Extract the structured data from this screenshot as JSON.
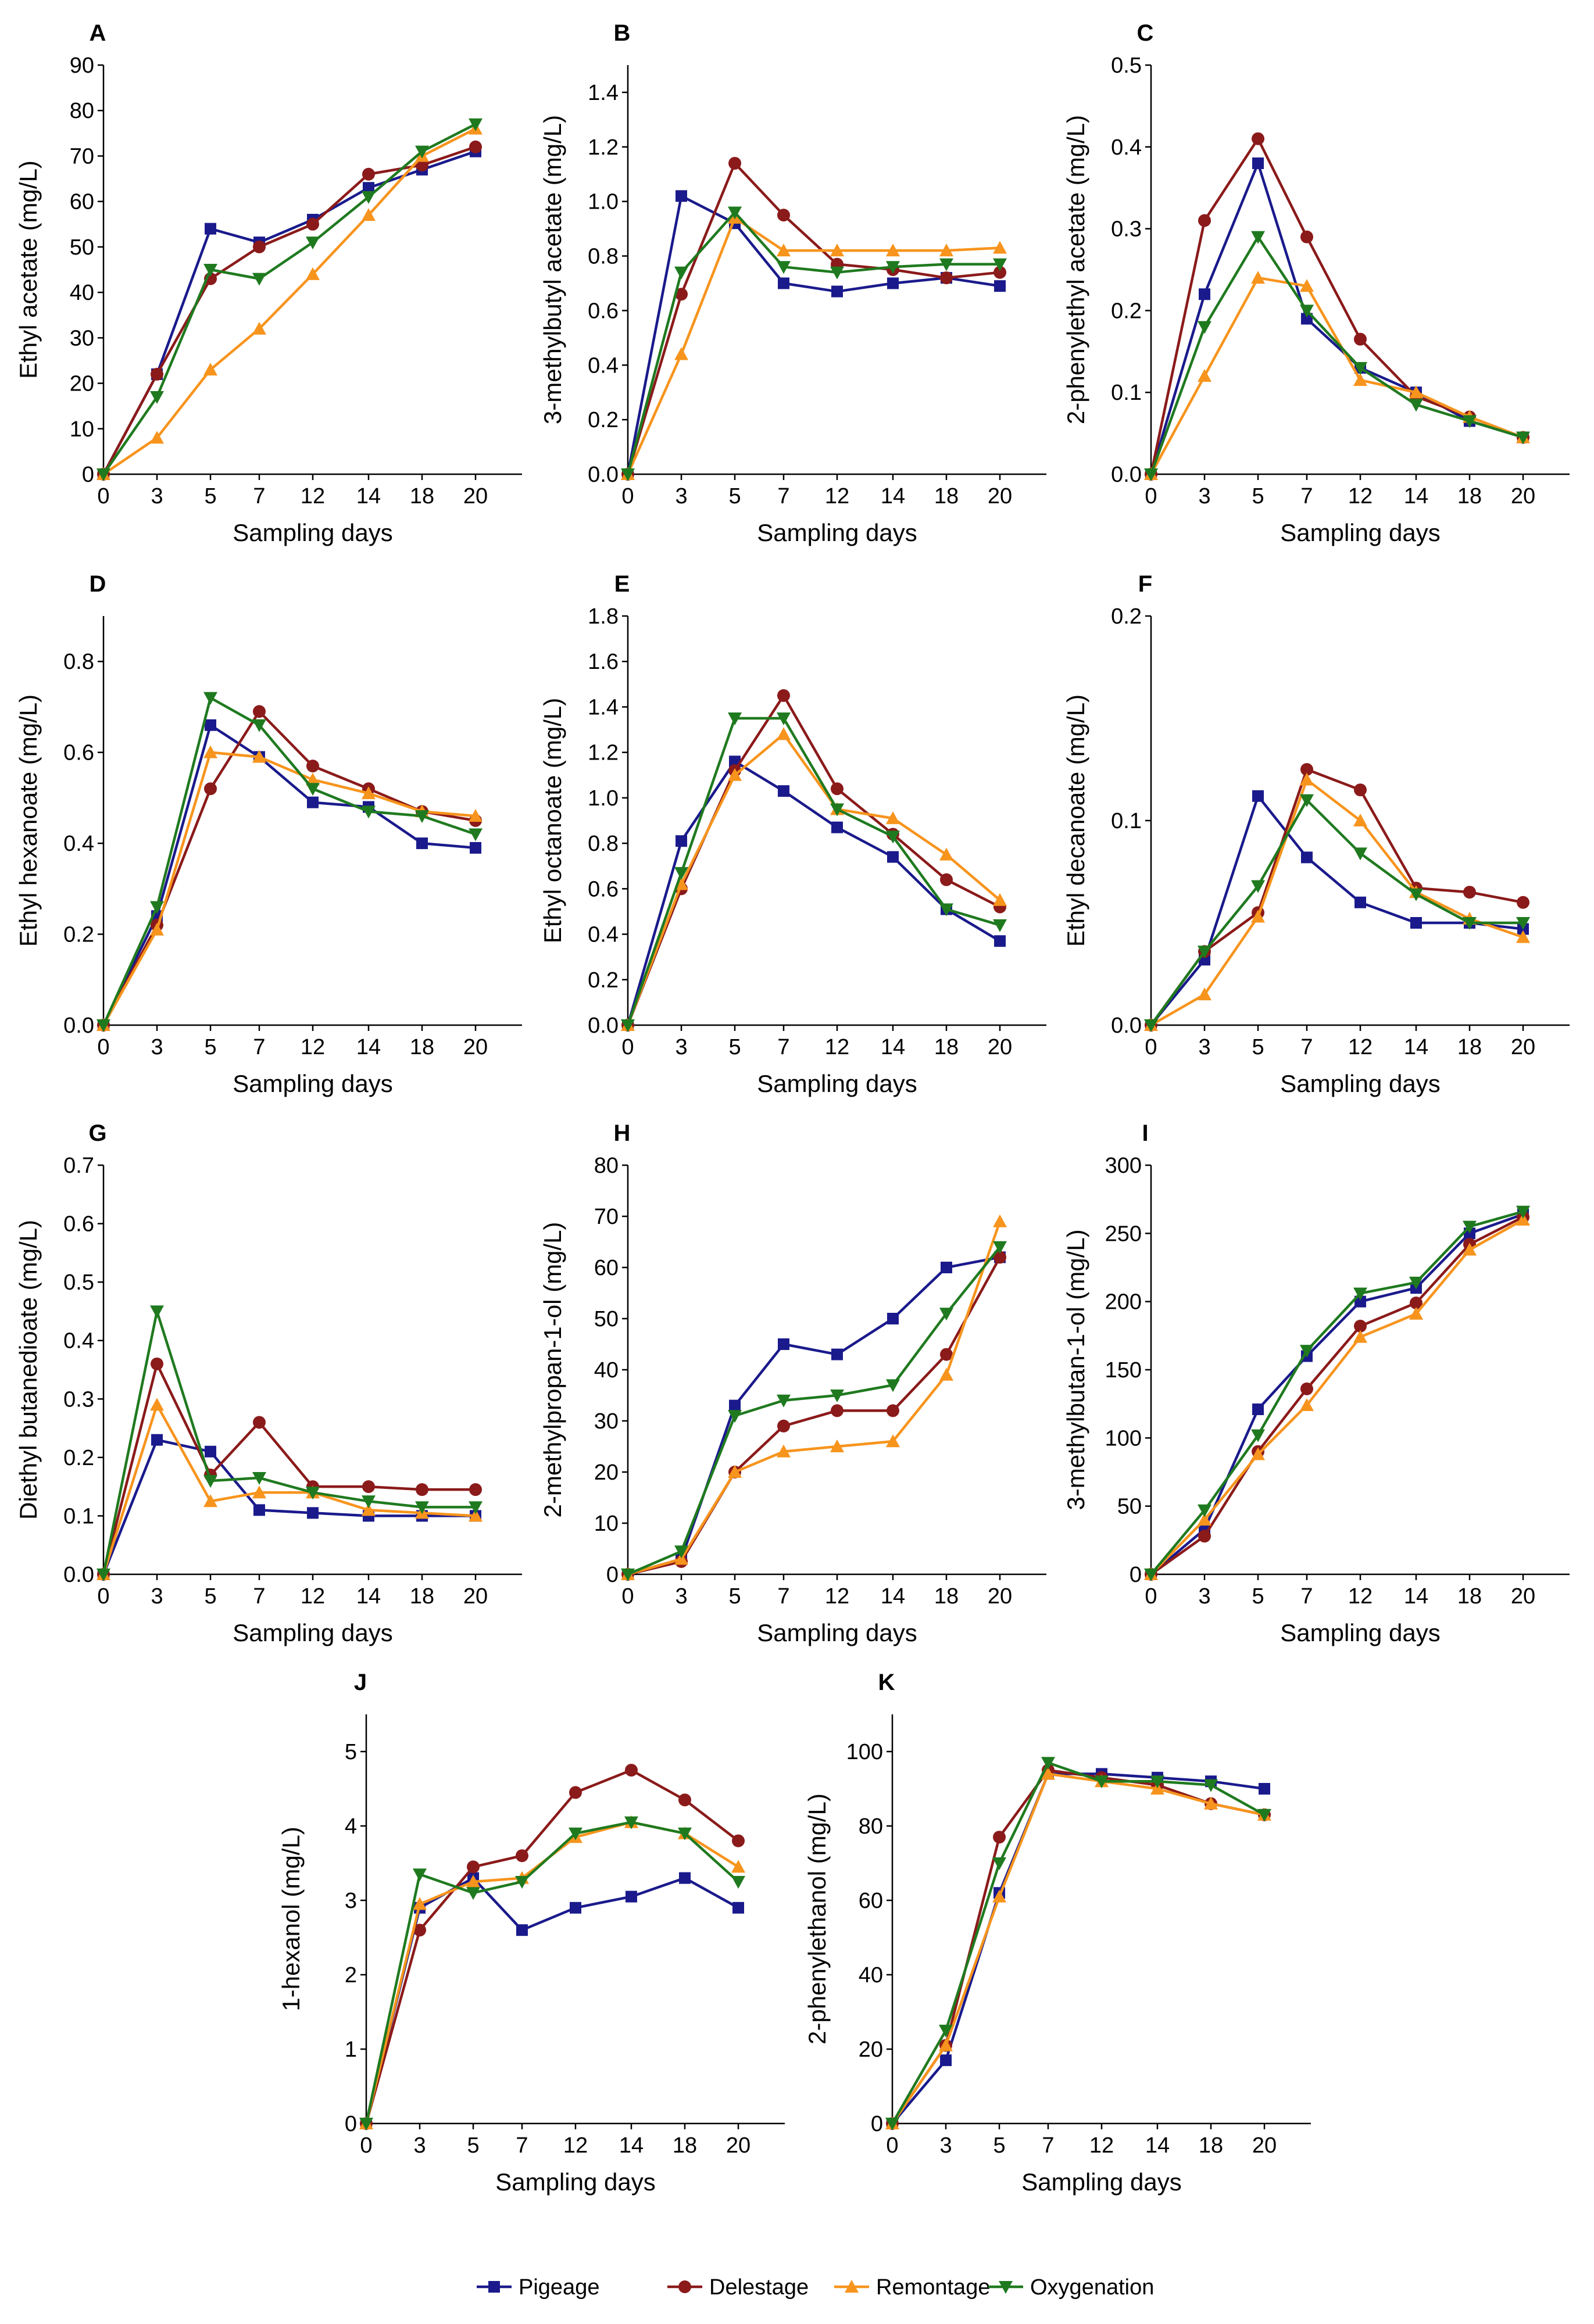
{
  "figure": {
    "legend": [
      {
        "name": "Pigeage",
        "color": "#1a1a8c",
        "marker": "square"
      },
      {
        "name": "Delestage",
        "color": "#8b1a1a",
        "marker": "circle"
      },
      {
        "name": "Remontage",
        "color": "#f7941d",
        "marker": "triangle-up"
      },
      {
        "name": "Oxygenation",
        "color": "#1f7a1f",
        "marker": "triangle-down"
      }
    ]
  },
  "chart_data": [
    {
      "panel": "A",
      "type": "line",
      "xlabel": "Sampling days",
      "ylabel": "Ethyl acetate (mg/L)",
      "categories": [
        "0",
        "3",
        "5",
        "7",
        "12",
        "14",
        "18",
        "20"
      ],
      "ylim": [
        0,
        90
      ],
      "yticks": [
        "0",
        "10",
        "20",
        "30",
        "40",
        "50",
        "60",
        "70",
        "80",
        "90"
      ],
      "series": [
        {
          "name": "Pigeage",
          "values": [
            0,
            22,
            54,
            51,
            56,
            63,
            67,
            71
          ]
        },
        {
          "name": "Delestage",
          "values": [
            0,
            22,
            43,
            50,
            55,
            66,
            68,
            72
          ]
        },
        {
          "name": "Remontage",
          "values": [
            0,
            8,
            23,
            32,
            44,
            57,
            70,
            76
          ]
        },
        {
          "name": "Oxygenation",
          "values": [
            0,
            17,
            45,
            43,
            51,
            61,
            71,
            77
          ]
        }
      ]
    },
    {
      "panel": "B",
      "type": "line",
      "xlabel": "Sampling days",
      "ylabel": "3-methylbutyl acetate (mg/L)",
      "categories": [
        "0",
        "3",
        "5",
        "7",
        "12",
        "14",
        "18",
        "20"
      ],
      "ylim": [
        0,
        1.5
      ],
      "yticks": [
        "0.0",
        "0.2",
        "0.4",
        "0.6",
        "0.8",
        "1.0",
        "1.2",
        "1.4"
      ],
      "series": [
        {
          "name": "Pigeage",
          "values": [
            0,
            1.02,
            0.92,
            0.7,
            0.67,
            0.7,
            0.72,
            0.69
          ]
        },
        {
          "name": "Delestage",
          "values": [
            0,
            0.66,
            1.14,
            0.95,
            0.77,
            0.75,
            0.72,
            0.74
          ]
        },
        {
          "name": "Remontage",
          "values": [
            0,
            0.44,
            0.94,
            0.82,
            0.82,
            0.82,
            0.82,
            0.83
          ]
        },
        {
          "name": "Oxygenation",
          "values": [
            0,
            0.74,
            0.96,
            0.76,
            0.74,
            0.76,
            0.77,
            0.77
          ]
        }
      ]
    },
    {
      "panel": "C",
      "type": "line",
      "xlabel": "Sampling days",
      "ylabel": "2-phenylethyl acetate (mg/L)",
      "categories": [
        "0",
        "3",
        "5",
        "7",
        "12",
        "14",
        "18",
        "20"
      ],
      "ylim": [
        0,
        0.5
      ],
      "yticks": [
        "0.0",
        "0.1",
        "0.2",
        "0.3",
        "0.4",
        "0.5"
      ],
      "series": [
        {
          "name": "Pigeage",
          "values": [
            0,
            0.22,
            0.38,
            0.19,
            0.13,
            0.1,
            0.065,
            0.045
          ]
        },
        {
          "name": "Delestage",
          "values": [
            0,
            0.31,
            0.41,
            0.29,
            0.165,
            0.095,
            0.07,
            0.045
          ]
        },
        {
          "name": "Remontage",
          "values": [
            0,
            0.12,
            0.24,
            0.23,
            0.115,
            0.1,
            0.07,
            0.045
          ]
        },
        {
          "name": "Oxygenation",
          "values": [
            0,
            0.18,
            0.29,
            0.2,
            0.13,
            0.085,
            0.065,
            0.045
          ]
        }
      ]
    },
    {
      "panel": "D",
      "type": "line",
      "xlabel": "Sampling days",
      "ylabel": "Ethyl hexanoate (mg/L)",
      "categories": [
        "0",
        "3",
        "5",
        "7",
        "12",
        "14",
        "18",
        "20"
      ],
      "ylim": [
        0,
        0.9
      ],
      "yticks": [
        "0.0",
        "0.2",
        "0.4",
        "0.6",
        "0.8"
      ],
      "series": [
        {
          "name": "Pigeage",
          "values": [
            0,
            0.24,
            0.66,
            0.59,
            0.49,
            0.48,
            0.4,
            0.39
          ]
        },
        {
          "name": "Delestage",
          "values": [
            0,
            0.22,
            0.52,
            0.69,
            0.57,
            0.52,
            0.47,
            0.45
          ]
        },
        {
          "name": "Remontage",
          "values": [
            0,
            0.21,
            0.6,
            0.59,
            0.54,
            0.51,
            0.47,
            0.46
          ]
        },
        {
          "name": "Oxygenation",
          "values": [
            0,
            0.26,
            0.72,
            0.66,
            0.52,
            0.47,
            0.46,
            0.42
          ]
        }
      ]
    },
    {
      "panel": "E",
      "type": "line",
      "xlabel": "Sampling days",
      "ylabel": "Ethyl octanoate (mg/L)",
      "categories": [
        "0",
        "3",
        "5",
        "7",
        "12",
        "14",
        "18",
        "20"
      ],
      "ylim": [
        0,
        1.8
      ],
      "yticks": [
        "0.0",
        "0.2",
        "0.4",
        "0.6",
        "0.8",
        "1.0",
        "1.2",
        "1.4",
        "1.6",
        "1.8"
      ],
      "series": [
        {
          "name": "Pigeage",
          "values": [
            0,
            0.81,
            1.16,
            1.03,
            0.87,
            0.74,
            0.51,
            0.37
          ]
        },
        {
          "name": "Delestage",
          "values": [
            0,
            0.6,
            1.12,
            1.45,
            1.04,
            0.84,
            0.64,
            0.52
          ]
        },
        {
          "name": "Remontage",
          "values": [
            0,
            0.62,
            1.1,
            1.28,
            0.95,
            0.91,
            0.75,
            0.55
          ]
        },
        {
          "name": "Oxygenation",
          "values": [
            0,
            0.67,
            1.35,
            1.35,
            0.95,
            0.83,
            0.51,
            0.44
          ]
        }
      ]
    },
    {
      "panel": "F",
      "type": "line",
      "xlabel": "Sampling days",
      "ylabel": "Ethyl decanoate (mg/L)",
      "categories": [
        "0",
        "3",
        "5",
        "7",
        "12",
        "14",
        "18",
        "20"
      ],
      "ylim": [
        0,
        0.2
      ],
      "yticks": [
        "0.0",
        "0.1",
        "0.2"
      ],
      "series": [
        {
          "name": "Pigeage",
          "values": [
            0,
            0.032,
            0.112,
            0.082,
            0.06,
            0.05,
            0.05,
            0.047
          ]
        },
        {
          "name": "Delestage",
          "values": [
            0,
            0.036,
            0.055,
            0.125,
            0.115,
            0.067,
            0.065,
            0.06
          ]
        },
        {
          "name": "Remontage",
          "values": [
            0,
            0.015,
            0.053,
            0.12,
            0.1,
            0.065,
            0.052,
            0.043
          ]
        },
        {
          "name": "Oxygenation",
          "values": [
            0,
            0.036,
            0.068,
            0.11,
            0.084,
            0.064,
            0.05,
            0.05
          ]
        }
      ]
    },
    {
      "panel": "G",
      "type": "line",
      "xlabel": "Sampling days",
      "ylabel": "Diethyl butanedioate (mg/L)",
      "categories": [
        "0",
        "3",
        "5",
        "7",
        "12",
        "14",
        "18",
        "20"
      ],
      "ylim": [
        0,
        0.7
      ],
      "yticks": [
        "0.0",
        "0.1",
        "0.2",
        "0.3",
        "0.4",
        "0.5",
        "0.6",
        "0.7"
      ],
      "series": [
        {
          "name": "Pigeage",
          "values": [
            0,
            0.23,
            0.21,
            0.11,
            0.105,
            0.1,
            0.1,
            0.1
          ]
        },
        {
          "name": "Delestage",
          "values": [
            0,
            0.36,
            0.17,
            0.26,
            0.15,
            0.15,
            0.145,
            0.145
          ]
        },
        {
          "name": "Remontage",
          "values": [
            0,
            0.29,
            0.125,
            0.14,
            0.14,
            0.11,
            0.105,
            0.1
          ]
        },
        {
          "name": "Oxygenation",
          "values": [
            0,
            0.45,
            0.16,
            0.165,
            0.14,
            0.125,
            0.115,
            0.115
          ]
        }
      ]
    },
    {
      "panel": "H",
      "type": "line",
      "xlabel": "Sampling days",
      "ylabel": "2-methylpropan-1-ol (mg/L)",
      "categories": [
        "0",
        "3",
        "5",
        "7",
        "12",
        "14",
        "18",
        "20"
      ],
      "ylim": [
        0,
        80
      ],
      "yticks": [
        "0",
        "10",
        "20",
        "30",
        "40",
        "50",
        "60",
        "70",
        "80"
      ],
      "series": [
        {
          "name": "Pigeage",
          "values": [
            0,
            3,
            33,
            45,
            43,
            50,
            60,
            62
          ]
        },
        {
          "name": "Delestage",
          "values": [
            0,
            2.5,
            20,
            29,
            32,
            32,
            43,
            62
          ]
        },
        {
          "name": "Remontage",
          "values": [
            0,
            3,
            20,
            24,
            25,
            26,
            39,
            69
          ]
        },
        {
          "name": "Oxygenation",
          "values": [
            0,
            4.5,
            31,
            34,
            35,
            37,
            51,
            64
          ]
        }
      ]
    },
    {
      "panel": "I",
      "type": "line",
      "xlabel": "Sampling days",
      "ylabel": "3-methylbutan-1-ol (mg/L)",
      "categories": [
        "0",
        "3",
        "5",
        "7",
        "12",
        "14",
        "18",
        "20"
      ],
      "ylim": [
        0,
        300
      ],
      "yticks": [
        "0",
        "50",
        "100",
        "150",
        "200",
        "250",
        "300"
      ],
      "series": [
        {
          "name": "Pigeage",
          "values": [
            0,
            33,
            121,
            160,
            200,
            210,
            250,
            264
          ]
        },
        {
          "name": "Delestage",
          "values": [
            0,
            28,
            90,
            136,
            182,
            199,
            242,
            262
          ]
        },
        {
          "name": "Remontage",
          "values": [
            0,
            40,
            88,
            124,
            174,
            191,
            238,
            260
          ]
        },
        {
          "name": "Oxygenation",
          "values": [
            0,
            47,
            102,
            164,
            206,
            214,
            255,
            266
          ]
        }
      ]
    },
    {
      "panel": "J",
      "type": "line",
      "xlabel": "Sampling days",
      "ylabel": "1-hexanol (mg/L)",
      "categories": [
        "0",
        "3",
        "5",
        "7",
        "12",
        "14",
        "18",
        "20"
      ],
      "ylim": [
        0,
        5.5
      ],
      "yticks": [
        "0",
        "1",
        "2",
        "3",
        "4",
        "5"
      ],
      "series": [
        {
          "name": "Pigeage",
          "values": [
            0,
            2.9,
            3.3,
            2.6,
            2.9,
            3.05,
            3.3,
            2.9
          ]
        },
        {
          "name": "Delestage",
          "values": [
            0,
            2.6,
            3.45,
            3.6,
            4.45,
            4.75,
            4.35,
            3.8
          ]
        },
        {
          "name": "Remontage",
          "values": [
            0,
            2.95,
            3.25,
            3.3,
            3.85,
            4.05,
            3.9,
            3.45
          ]
        },
        {
          "name": "Oxygenation",
          "values": [
            0,
            3.35,
            3.1,
            3.25,
            3.9,
            4.05,
            3.9,
            3.25
          ]
        }
      ]
    },
    {
      "panel": "K",
      "type": "line",
      "xlabel": "Sampling days",
      "ylabel": "2-phenylethanol (mg/L)",
      "categories": [
        "0",
        "3",
        "5",
        "7",
        "12",
        "14",
        "18",
        "20"
      ],
      "ylim": [
        0,
        110
      ],
      "yticks": [
        "0",
        "20",
        "40",
        "60",
        "80",
        "100"
      ],
      "series": [
        {
          "name": "Pigeage",
          "values": [
            0,
            17,
            62,
            94,
            94,
            93,
            92,
            90
          ]
        },
        {
          "name": "Delestage",
          "values": [
            0,
            21,
            77,
            95,
            93,
            91,
            86,
            83
          ]
        },
        {
          "name": "Remontage",
          "values": [
            0,
            21,
            61,
            94,
            92,
            90,
            86,
            83
          ]
        },
        {
          "name": "Oxygenation",
          "values": [
            0,
            25,
            70,
            97,
            92,
            92,
            91,
            83
          ]
        }
      ]
    }
  ]
}
